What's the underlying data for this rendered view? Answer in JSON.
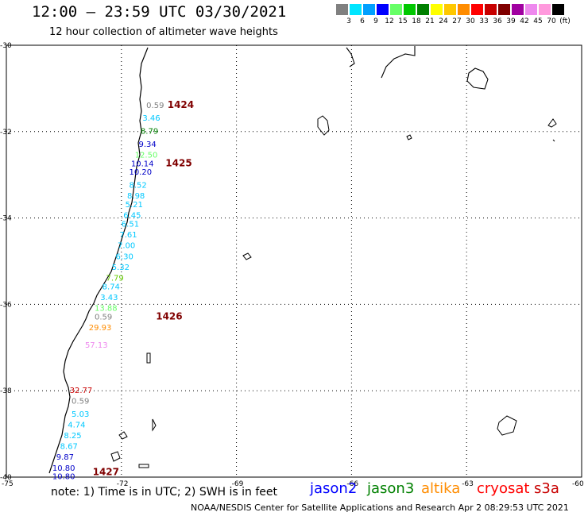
{
  "header": {
    "title": "12:00 — 23:59 UTC 03/30/2021",
    "subtitle": "12 hour collection of altimeter wave heights"
  },
  "legend": {
    "labels": [
      "3",
      "6",
      "9",
      "12",
      "15",
      "18",
      "21",
      "24",
      "27",
      "30",
      "33",
      "36",
      "39",
      "42",
      "45",
      "70",
      "(ft)"
    ],
    "colors": [
      "#808080",
      "#00e5ff",
      "#00a0ff",
      "#0000ff",
      "#66ff66",
      "#00c800",
      "#008000",
      "#ffff00",
      "#ffc800",
      "#ff8c00",
      "#ff0000",
      "#c80000",
      "#800000",
      "#a000a0",
      "#ee88ee",
      "#ff99dd",
      "#000000"
    ]
  },
  "map": {
    "lat_labels": [
      "-30",
      "-32",
      "-34",
      "-36",
      "-38",
      "-40"
    ],
    "lon_labels": [
      "-75",
      "-72",
      "-69",
      "-66",
      "-63",
      "-60"
    ],
    "pass_labels": [
      {
        "text": "1424",
        "lon": -70.8,
        "lat": -31.45
      },
      {
        "text": "1425",
        "lon": -70.85,
        "lat": -32.8
      },
      {
        "text": "1426",
        "lon": -71.1,
        "lat": -36.35
      },
      {
        "text": "1427",
        "lon": -72.75,
        "lat": -39.95
      }
    ],
    "readings": [
      {
        "text": "0.59",
        "color": "#808080",
        "lon": -71.35,
        "lat": -31.45
      },
      {
        "text": "3.46",
        "color": "#00c8ff",
        "lon": -71.45,
        "lat": -31.75
      },
      {
        "text": "8.79",
        "color": "#008000",
        "lon": -71.5,
        "lat": -32.05
      },
      {
        "text": "9.34",
        "color": "#0000c8",
        "lon": -71.55,
        "lat": -32.35
      },
      {
        "text": "12.50",
        "color": "#66ff66",
        "lon": -71.65,
        "lat": -32.6
      },
      {
        "text": "10.14",
        "color": "#0000c8",
        "lon": -71.75,
        "lat": -32.8
      },
      {
        "text": "10.20",
        "color": "#0000c8",
        "lon": -71.8,
        "lat": -33.0
      },
      {
        "text": "8.52",
        "color": "#00c8ff",
        "lon": -71.8,
        "lat": -33.3
      },
      {
        "text": "8.98",
        "color": "#00c8ff",
        "lon": -71.85,
        "lat": -33.55
      },
      {
        "text": "5.21",
        "color": "#00c8ff",
        "lon": -71.9,
        "lat": -33.75
      },
      {
        "text": "6.45",
        "color": "#00c8ff",
        "lon": -71.95,
        "lat": -34.0
      },
      {
        "text": "6.51",
        "color": "#00c8ff",
        "lon": -72.0,
        "lat": -34.2
      },
      {
        "text": "7.61",
        "color": "#00c8ff",
        "lon": -72.05,
        "lat": -34.45
      },
      {
        "text": "7.00",
        "color": "#00c8ff",
        "lon": -72.1,
        "lat": -34.7
      },
      {
        "text": "6.30",
        "color": "#00c8ff",
        "lon": -72.15,
        "lat": -34.95
      },
      {
        "text": "5.32",
        "color": "#00c8ff",
        "lon": -72.25,
        "lat": -35.2
      },
      {
        "text": "7.79",
        "color": "#66cc00",
        "lon": -72.4,
        "lat": -35.45
      },
      {
        "text": "8.74",
        "color": "#00c8ff",
        "lon": -72.5,
        "lat": -35.65
      },
      {
        "text": "3.43",
        "color": "#00c8ff",
        "lon": -72.55,
        "lat": -35.9
      },
      {
        "text": "13.88",
        "color": "#66ff66",
        "lon": -72.7,
        "lat": -36.15
      },
      {
        "text": "0.59",
        "color": "#808080",
        "lon": -72.7,
        "lat": -36.35
      },
      {
        "text": "29.93",
        "color": "#ff8c00",
        "lon": -72.85,
        "lat": -36.6
      },
      {
        "text": "57.13",
        "color": "#ee88ee",
        "lon": -72.95,
        "lat": -37.0
      },
      {
        "text": "32.77",
        "color": "#c80000",
        "lon": -73.35,
        "lat": -38.05
      },
      {
        "text": "0.59",
        "color": "#808080",
        "lon": -73.3,
        "lat": -38.3
      },
      {
        "text": "5.03",
        "color": "#00c8ff",
        "lon": -73.3,
        "lat": -38.6
      },
      {
        "text": "4.74",
        "color": "#00c8ff",
        "lon": -73.4,
        "lat": -38.85
      },
      {
        "text": "8.25",
        "color": "#00c8ff",
        "lon": -73.5,
        "lat": -39.1
      },
      {
        "text": "8.67",
        "color": "#00c8ff",
        "lon": -73.6,
        "lat": -39.35
      },
      {
        "text": "9.87",
        "color": "#0000c8",
        "lon": -73.7,
        "lat": -39.6
      },
      {
        "text": "10.80",
        "color": "#0000c8",
        "lon": -73.8,
        "lat": -39.85
      },
      {
        "text": "10.80",
        "color": "#0000c8",
        "lon": -73.8,
        "lat": -40.05
      }
    ]
  },
  "note": "note: 1) Time is in UTC; 2) SWH is in feet",
  "satellites": [
    {
      "name": "jason2",
      "color": "#0000ff"
    },
    {
      "name": "jason3",
      "color": "#008000"
    },
    {
      "name": "altika",
      "color": "#ff8c00"
    },
    {
      "name": "cryosat",
      "color": "#ff0000"
    },
    {
      "name": "s3a",
      "color": "#c80000"
    }
  ],
  "footer": "NOAA/NESDIS Center for Satellite Applications and Research   Apr  2 08:29:53 UTC 2021"
}
